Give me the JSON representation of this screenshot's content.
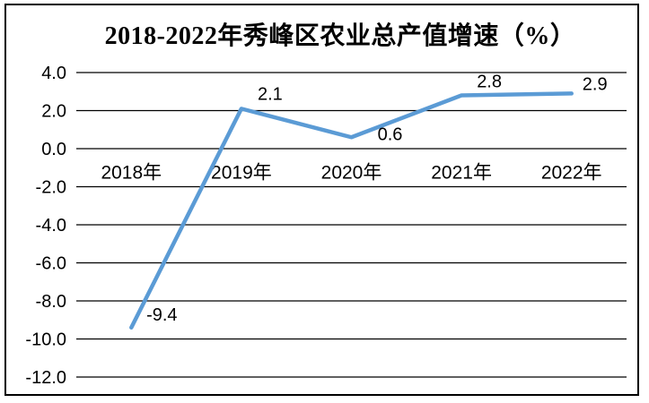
{
  "title": "2018-2022年秀峰区农业总产值增速（%）",
  "colors": {
    "line": "#5B9BD5",
    "grid": "#000000",
    "text": "#000000",
    "border": "#000000",
    "background": "#ffffff"
  },
  "chart_data": {
    "type": "line",
    "title": "2018-2022年秀峰区农业总产值增速（%）",
    "categories": [
      "2018年",
      "2019年",
      "2020年",
      "2021年",
      "2022年"
    ],
    "values": [
      -9.4,
      2.1,
      0.6,
      2.8,
      2.9
    ],
    "point_labels": [
      "-9.4",
      "2.1",
      "0.6",
      "2.8",
      "2.9"
    ],
    "xlabel": "",
    "ylabel": "",
    "ylim": [
      -12.0,
      4.0
    ],
    "y_ticks": [
      4.0,
      2.0,
      0.0,
      -2.0,
      -4.0,
      -6.0,
      -8.0,
      -10.0,
      -12.0
    ],
    "y_tick_labels": [
      "4.0",
      "2.0",
      "0.0",
      "-2.0",
      "-4.0",
      "-6.0",
      "-8.0",
      "-10.0",
      "-12.0"
    ],
    "grid": true,
    "legend": "none",
    "series_name": "农业总产值增速"
  }
}
